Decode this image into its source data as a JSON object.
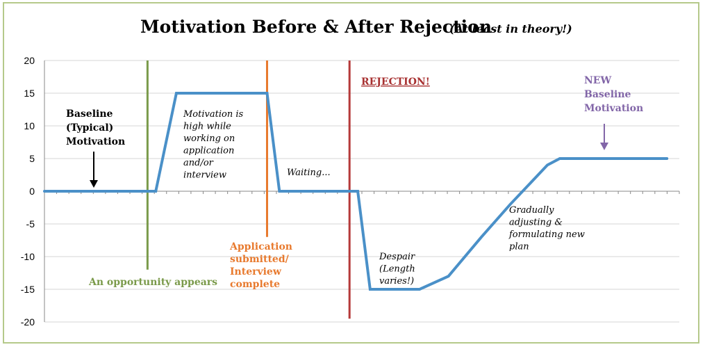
{
  "chart_data": {
    "type": "line",
    "title": "Motivation Before & After Rejection",
    "subtitle": "(At least in theory!)",
    "xlabel": "",
    "ylabel": "",
    "ylim": [
      -20,
      20
    ],
    "yticks": [
      20,
      15,
      10,
      5,
      0,
      -5,
      -10,
      -15,
      -20
    ],
    "grid": true,
    "series": [
      {
        "color": "#4a90c8",
        "points": [
          [
            0,
            0
          ],
          [
            2.7,
            0
          ],
          [
            3.2,
            15
          ],
          [
            5.4,
            15
          ],
          [
            5.7,
            0
          ],
          [
            7.6,
            0
          ],
          [
            7.9,
            -15
          ],
          [
            9.1,
            -15
          ],
          [
            9.8,
            -13
          ],
          [
            10.6,
            -7
          ],
          [
            11.3,
            -2
          ],
          [
            11.6,
            0
          ],
          [
            12.2,
            4
          ],
          [
            12.5,
            5
          ],
          [
            15.1,
            5
          ]
        ]
      }
    ],
    "xlim": [
      0,
      15.4
    ],
    "vlines": [
      {
        "x": 2.5,
        "ymin": -12,
        "ymax": 20,
        "color": "#7a9a4a"
      },
      {
        "x": 5.4,
        "ymin": -7,
        "ymax": 20,
        "color": "#e87a2e"
      },
      {
        "x": 7.4,
        "ymin": -19.5,
        "ymax": 20,
        "color": "#b53a3a"
      }
    ],
    "annotations": {
      "baseline": {
        "lines": [
          "Baseline",
          "(Typical)",
          "Motivation"
        ],
        "color": "#000000"
      },
      "motivation_high": {
        "lines": [
          "Motivation is",
          "high while",
          "working on",
          "application",
          "and/or",
          "interview"
        ]
      },
      "waiting": "Waiting...",
      "rejection": {
        "text": "REJECTION!",
        "color": "#a83232"
      },
      "new_baseline": {
        "lines": [
          "NEW",
          "Baseline",
          "Motivation"
        ],
        "color": "#8266a8"
      },
      "opportunity": {
        "text": "An opportunity appears",
        "color": "#7a9a4a"
      },
      "application": {
        "lines": [
          "Application",
          "submitted/",
          "Interview",
          "complete"
        ],
        "color": "#e87a2e"
      },
      "despair": {
        "lines": [
          "Despair",
          "(Length",
          "varies!)"
        ]
      },
      "adjusting": {
        "lines": [
          "Gradually",
          "adjusting &",
          "formulating new",
          "plan"
        ]
      }
    },
    "colors": {
      "frame": "#b5c98a",
      "grid": "#d4d4d4",
      "axis": "#888888",
      "arrow_black": "#000000",
      "arrow_purple": "#8266a8"
    }
  }
}
